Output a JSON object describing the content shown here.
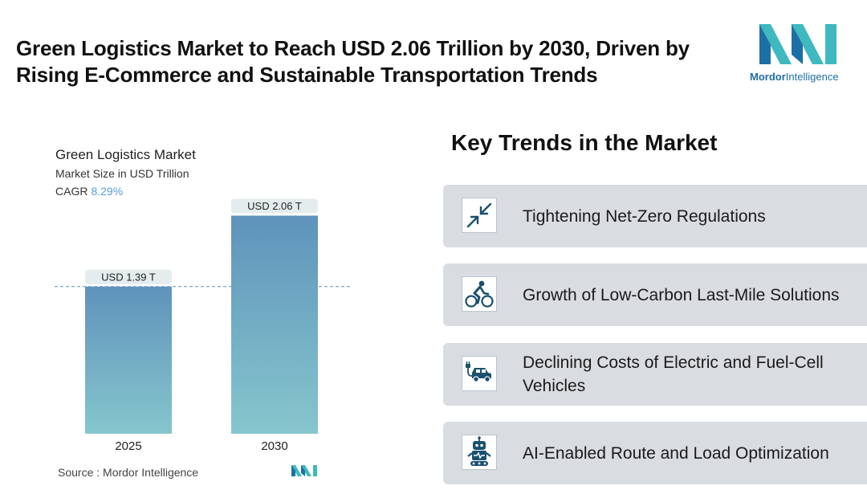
{
  "headline": "Green Logistics Market to Reach USD 2.06 Trillion by 2030, Driven by Rising E-Commerce and Sustainable Transportation Trends",
  "brand": {
    "name_bold": "Mordor",
    "name_light": "Intelligence",
    "colors": {
      "teal": "#3fb8c0",
      "blue": "#1d6fa5"
    }
  },
  "chart_data": {
    "type": "bar",
    "title": "Green Logistics Market",
    "subtitle": "Market Size in USD Trillion",
    "cagr_label": "CAGR",
    "cagr_value": "8.29%",
    "categories": [
      "2025",
      "2030"
    ],
    "values": [
      1.39,
      2.06
    ],
    "data_labels": [
      "USD 1.39 T",
      "USD 2.06 T"
    ],
    "ylim": [
      0,
      2.2
    ],
    "xlabel": "",
    "ylabel": "",
    "reference_line": 1.39,
    "colors": {
      "bar_top": "#5f93bb",
      "bar_bottom": "#86c6cd",
      "label_bg": "#e4ecee",
      "ref_line": "#5d8fb3"
    }
  },
  "source": {
    "label": "Source :",
    "value": "Mordor Intelligence"
  },
  "trends": {
    "title": "Key Trends in the Market",
    "items": [
      {
        "label": "Tightening Net-Zero Regulations",
        "icon": "compress-arrows-icon"
      },
      {
        "label": "Growth of Low-Carbon Last-Mile Solutions",
        "icon": "cyclist-icon"
      },
      {
        "label": "Declining Costs of Electric and Fuel-Cell Vehicles",
        "icon": "electric-car-icon"
      },
      {
        "label": "AI-Enabled Route and Load Optimization",
        "icon": "robot-icon"
      }
    ]
  }
}
